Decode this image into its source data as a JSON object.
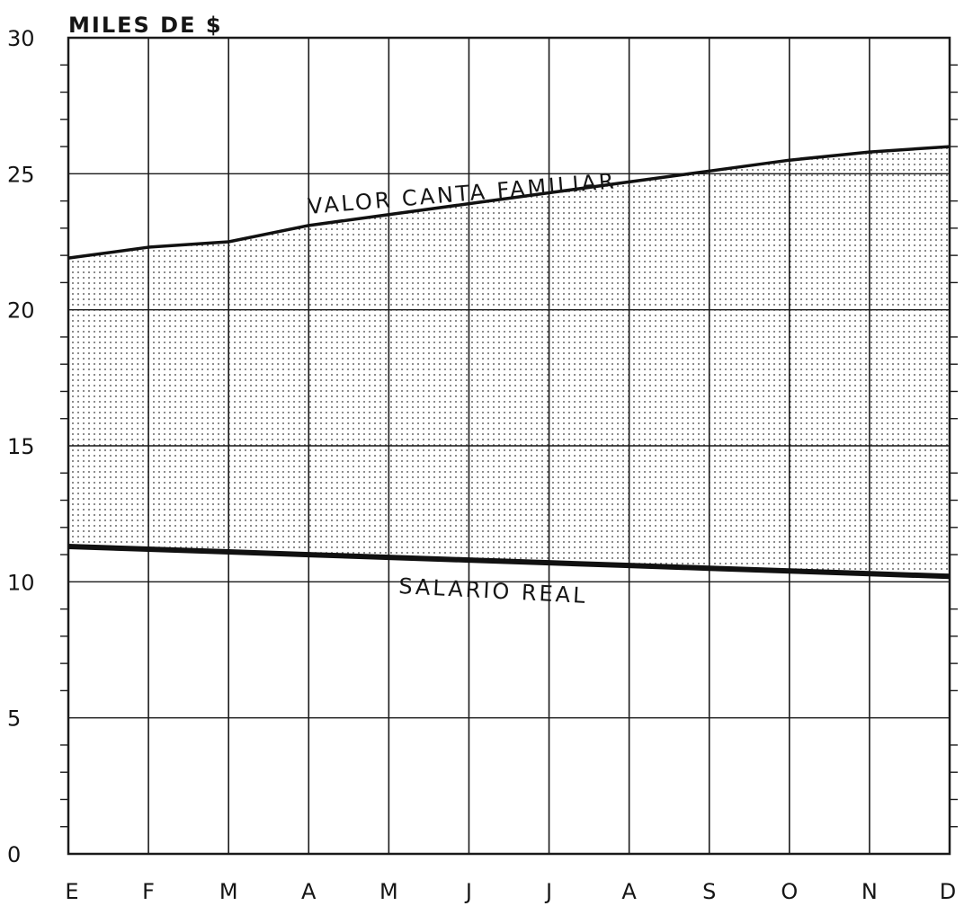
{
  "chart_data": {
    "type": "area",
    "ylabel": "MILES DE $",
    "title": "",
    "xlabel": "",
    "categories": [
      "E",
      "F",
      "M",
      "A",
      "M",
      "J",
      "J",
      "A",
      "S",
      "O",
      "N",
      "D"
    ],
    "yticks": [
      "0",
      "5",
      "10",
      "15",
      "20",
      "25",
      "30"
    ],
    "ylim": [
      0,
      30
    ],
    "grid": true,
    "fill": "dotted band between series",
    "series": [
      {
        "name": "VALOR CANTA FAMILIAR",
        "values": [
          21.9,
          22.3,
          22.5,
          23.1,
          23.5,
          23.9,
          24.3,
          24.7,
          25.1,
          25.5,
          25.8,
          26.0
        ]
      },
      {
        "name": "SALARIO REAL",
        "values": [
          11.3,
          11.2,
          11.1,
          11.0,
          10.9,
          10.8,
          10.7,
          10.6,
          10.5,
          10.4,
          10.3,
          10.2
        ]
      }
    ]
  }
}
